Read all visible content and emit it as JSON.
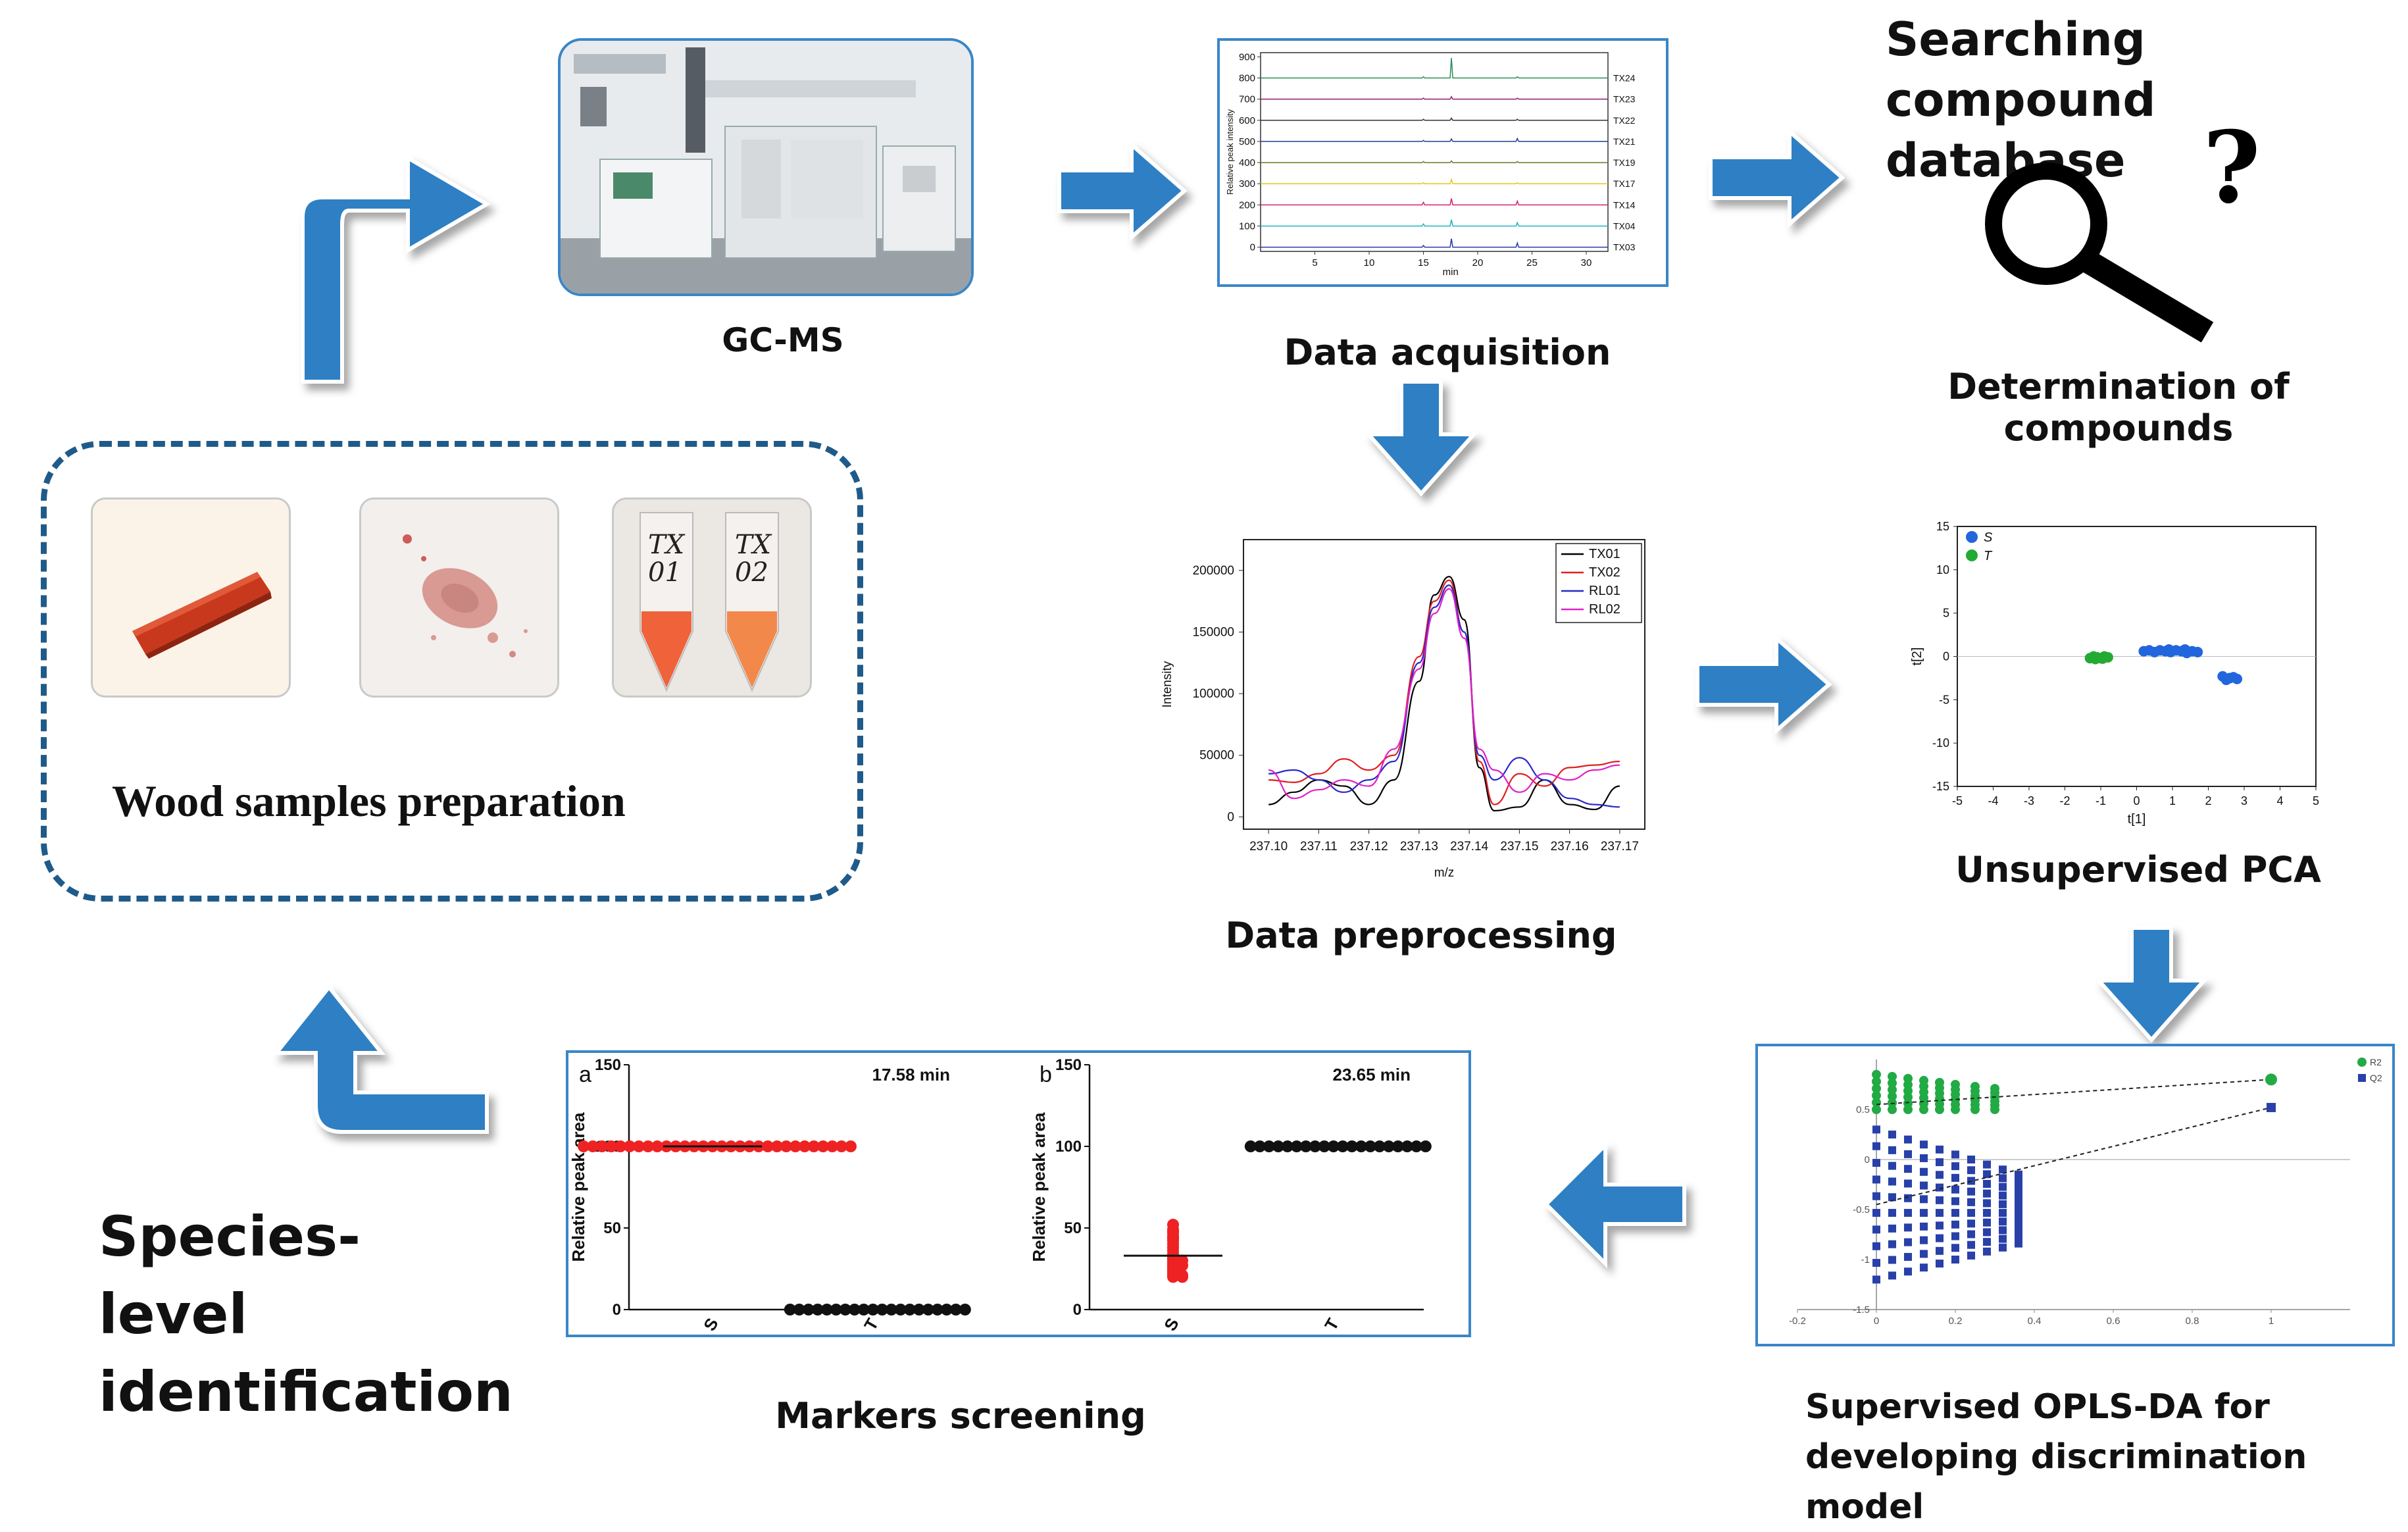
{
  "labels": {
    "gcms": "GC-MS",
    "data_acquisition": "Data acquisition",
    "searching_db": "Searching compound\ndatabase",
    "determination": "Determination of compounds",
    "data_preprocessing": "Data preprocessing",
    "unsupervised_pca": "Unsupervised PCA",
    "opls_da": "Supervised OPLS-DA for\ndeveloping discrimination model",
    "markers_screening": "Markers screening",
    "species_level": "Species-level\nidentification",
    "wood_samples": "Wood samples preparation",
    "question_mark": "?",
    "tube1_label": "TX\n01",
    "tube2_label": "TX\n02"
  },
  "colors": {
    "arrow_blue": "#2f7fc3",
    "panel_border": "#3a86c8",
    "dashed_border": "#1f5b8a"
  },
  "chart_data": [
    {
      "id": "acquisition",
      "type": "line",
      "title": "",
      "xlabel": "min",
      "ylabel": "Relative peak intensity",
      "xlim": [
        0,
        32
      ],
      "ylim": [
        -20,
        920
      ],
      "x_ticks": [
        5,
        10,
        15,
        20,
        25,
        30
      ],
      "y_ticks": [
        0,
        100,
        200,
        300,
        400,
        500,
        600,
        700,
        800,
        900
      ],
      "peaks_min": [
        15.0,
        17.58,
        23.65
      ],
      "series": [
        {
          "name": "TX24",
          "offset": 800,
          "color": "#2e8b57",
          "peak_heights": [
            6,
            95,
            6
          ]
        },
        {
          "name": "TX23",
          "offset": 700,
          "color": "#8b1a6b",
          "peak_heights": [
            5,
            12,
            5
          ]
        },
        {
          "name": "TX22",
          "offset": 600,
          "color": "#333333",
          "peak_heights": [
            5,
            10,
            5
          ]
        },
        {
          "name": "TX21",
          "offset": 500,
          "color": "#1f3f8f",
          "peak_heights": [
            5,
            12,
            14
          ]
        },
        {
          "name": "TX19",
          "offset": 400,
          "color": "#6a7a2a",
          "peak_heights": [
            5,
            8,
            5
          ]
        },
        {
          "name": "TX17",
          "offset": 300,
          "color": "#e0c81e",
          "peak_heights": [
            5,
            20,
            5
          ]
        },
        {
          "name": "TX14",
          "offset": 200,
          "color": "#d6206f",
          "peak_heights": [
            12,
            30,
            18
          ]
        },
        {
          "name": "TX04",
          "offset": 100,
          "color": "#1fb5c0",
          "peak_heights": [
            10,
            30,
            16
          ]
        },
        {
          "name": "TX03",
          "offset": 0,
          "color": "#2a3aa8",
          "peak_heights": [
            8,
            40,
            20
          ]
        }
      ]
    },
    {
      "id": "preprocessing",
      "type": "line",
      "title": "",
      "xlabel": "m/z",
      "ylabel": "Intensity",
      "xlim": [
        237.095,
        237.175
      ],
      "ylim": [
        -10000,
        225000
      ],
      "x_ticks": [
        237.1,
        237.11,
        237.12,
        237.13,
        237.14,
        237.15,
        237.16,
        237.17
      ],
      "y_ticks": [
        0,
        50000,
        100000,
        150000,
        200000
      ],
      "legend": "top-right",
      "series": [
        {
          "name": "TX01",
          "color": "#000000",
          "x": [
            237.1,
            237.105,
            237.11,
            237.115,
            237.12,
            237.125,
            237.13,
            237.133,
            237.136,
            237.139,
            237.142,
            237.145,
            237.15,
            237.155,
            237.16,
            237.165,
            237.17
          ],
          "y": [
            10000,
            20000,
            30000,
            25000,
            10000,
            30000,
            110000,
            180000,
            195000,
            160000,
            40000,
            5000,
            8000,
            30000,
            10000,
            6000,
            25000
          ]
        },
        {
          "name": "TX02",
          "color": "#e02020",
          "x": [
            237.1,
            237.105,
            237.11,
            237.115,
            237.12,
            237.125,
            237.13,
            237.133,
            237.136,
            237.139,
            237.142,
            237.145,
            237.15,
            237.155,
            237.16,
            237.165,
            237.17
          ],
          "y": [
            30000,
            28000,
            35000,
            47000,
            38000,
            50000,
            130000,
            175000,
            192000,
            150000,
            45000,
            10000,
            35000,
            25000,
            40000,
            42000,
            45000
          ]
        },
        {
          "name": "RL01",
          "color": "#2828c8",
          "x": [
            237.1,
            237.105,
            237.11,
            237.115,
            237.12,
            237.125,
            237.13,
            237.133,
            237.136,
            237.139,
            237.142,
            237.145,
            237.15,
            237.155,
            237.16,
            237.165,
            237.17
          ],
          "y": [
            35000,
            38000,
            30000,
            20000,
            30000,
            45000,
            125000,
            170000,
            188000,
            150000,
            50000,
            30000,
            48000,
            30000,
            15000,
            10000,
            8000
          ]
        },
        {
          "name": "RL02",
          "color": "#e020c8",
          "x": [
            237.1,
            237.105,
            237.11,
            237.115,
            237.12,
            237.125,
            237.13,
            237.133,
            237.136,
            237.139,
            237.142,
            237.145,
            237.15,
            237.155,
            237.16,
            237.165,
            237.17
          ],
          "y": [
            38000,
            15000,
            22000,
            30000,
            25000,
            55000,
            120000,
            165000,
            185000,
            145000,
            55000,
            38000,
            20000,
            35000,
            30000,
            38000,
            42000
          ]
        }
      ]
    },
    {
      "id": "pca",
      "type": "scatter",
      "xlabel": "t[1]",
      "ylabel": "t[2]",
      "xlim": [
        -5,
        5
      ],
      "ylim": [
        -15,
        15
      ],
      "x_ticks": [
        -5,
        -4,
        -3,
        -2,
        -1,
        0,
        1,
        2,
        3,
        4,
        5
      ],
      "y_ticks": [
        -15,
        -10,
        -5,
        0,
        5,
        10,
        15
      ],
      "legend": "top-left",
      "series": [
        {
          "name": "S",
          "color": "#2266dd",
          "points": [
            [
              0.2,
              0.6
            ],
            [
              0.35,
              0.7
            ],
            [
              0.5,
              0.5
            ],
            [
              0.65,
              0.7
            ],
            [
              0.8,
              0.6
            ],
            [
              0.95,
              0.5
            ],
            [
              1.1,
              0.7
            ],
            [
              1.25,
              0.6
            ],
            [
              1.4,
              0.4
            ],
            [
              1.55,
              0.6
            ],
            [
              1.7,
              0.5
            ],
            [
              1.35,
              0.8
            ],
            [
              0.9,
              0.8
            ],
            [
              2.4,
              -2.3
            ],
            [
              2.6,
              -2.5
            ],
            [
              2.8,
              -2.6
            ],
            [
              2.5,
              -2.7
            ],
            [
              2.7,
              -2.4
            ]
          ]
        },
        {
          "name": "T",
          "color": "#22aa33",
          "points": [
            [
              -1.3,
              -0.2
            ],
            [
              -1.2,
              0.0
            ],
            [
              -1.1,
              -0.1
            ],
            [
              -1.0,
              -0.2
            ],
            [
              -0.9,
              0.0
            ],
            [
              -0.8,
              -0.1
            ],
            [
              -1.15,
              -0.3
            ],
            [
              -0.95,
              -0.25
            ]
          ]
        }
      ]
    },
    {
      "id": "oplsda",
      "type": "scatter",
      "xlabel": "",
      "ylabel": "",
      "xlim": [
        -0.2,
        1.2
      ],
      "ylim": [
        -1.5,
        1.0
      ],
      "x_ticks": [
        -0.2,
        0,
        0.2,
        0.4,
        0.6,
        0.8,
        1
      ],
      "y_ticks": [
        -1.5,
        -1,
        -0.5,
        0,
        0.5
      ],
      "legend": "top-right",
      "series": [
        {
          "name": "R2",
          "color": "#22aa44",
          "marker": "circle",
          "permuted_x": [
            0,
            0.04,
            0.08,
            0.12,
            0.16,
            0.2,
            0.25,
            0.3
          ],
          "permuted_range": [
            0.5,
            0.85
          ],
          "line": [
            [
              0,
              0.55
            ],
            [
              1,
              0.8
            ]
          ],
          "original": [
            1,
            0.8
          ]
        },
        {
          "name": "Q2",
          "color": "#2840a8",
          "marker": "square",
          "permuted_x": [
            0,
            0.04,
            0.08,
            0.12,
            0.16,
            0.2,
            0.24,
            0.28,
            0.32,
            0.36
          ],
          "permuted_range": [
            -1.2,
            0.3
          ],
          "line": [
            [
              0,
              -0.45
            ],
            [
              1,
              0.52
            ]
          ],
          "original": [
            1,
            0.52
          ]
        }
      ]
    },
    {
      "id": "marker_a",
      "type": "scatter",
      "panel_letter": "a",
      "title": "17.58 min",
      "ylabel": "Relative peak area",
      "categories": [
        "S",
        "T"
      ],
      "ylim": [
        0,
        150
      ],
      "y_ticks": [
        0,
        50,
        100,
        150
      ],
      "series": [
        {
          "name": "S",
          "color": "#ee2222",
          "values": [
            100,
            100,
            100,
            100,
            100,
            100,
            100,
            100,
            100,
            100,
            100,
            100,
            100,
            100,
            100,
            100,
            100,
            100,
            100,
            100,
            100,
            100,
            100,
            100,
            100,
            100,
            100,
            100,
            100,
            100
          ],
          "mean": 100
        },
        {
          "name": "T",
          "color": "#111111",
          "values": [
            0,
            0,
            0,
            0,
            0,
            0,
            0,
            0,
            0,
            0,
            0,
            0,
            0,
            0,
            0,
            0,
            0,
            0,
            0,
            0
          ],
          "mean": 0
        }
      ]
    },
    {
      "id": "marker_b",
      "type": "scatter",
      "panel_letter": "b",
      "title": "23.65 min",
      "ylabel": "Relative peak area",
      "categories": [
        "S",
        "T"
      ],
      "ylim": [
        0,
        150
      ],
      "y_ticks": [
        0,
        50,
        100,
        150
      ],
      "series": [
        {
          "name": "S",
          "color": "#ee2222",
          "values": [
            52,
            49,
            48,
            47,
            45,
            44,
            43,
            42,
            40,
            38,
            36,
            34,
            33,
            32,
            31,
            30,
            30,
            29,
            28,
            27,
            27,
            26,
            25,
            24,
            23,
            22,
            21,
            21,
            20,
            20
          ],
          "mean": 33
        },
        {
          "name": "T",
          "color": "#111111",
          "values": [
            100,
            100,
            100,
            100,
            100,
            100,
            100,
            100,
            100,
            100,
            100,
            100,
            100,
            100,
            100,
            100,
            100,
            100,
            100,
            100
          ],
          "mean": 100
        }
      ]
    }
  ]
}
